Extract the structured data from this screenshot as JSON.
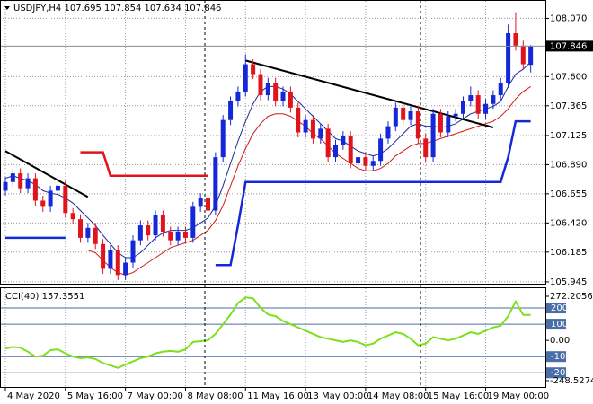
{
  "chart_data": [
    {
      "type": "candlestick",
      "title": "USDJPY,H4  107.695 107.854 107.634 107.846",
      "categories": [
        "4 May 2020",
        null,
        null,
        null,
        null,
        null,
        null,
        null,
        "5 May 16:00",
        null,
        null,
        null,
        null,
        null,
        null,
        null,
        "7 May 00:00",
        null,
        null,
        null,
        null,
        null,
        null,
        null,
        "8 May 08:00",
        null,
        null,
        null,
        null,
        null,
        null,
        null,
        "11 May 16:00",
        null,
        null,
        null,
        null,
        null,
        null,
        null,
        "13 May 00:00",
        null,
        null,
        null,
        null,
        null,
        null,
        null,
        "14 May 08:00",
        null,
        null,
        null,
        null,
        null,
        null,
        null,
        "15 May 16:00",
        null,
        null,
        null,
        null,
        null,
        null,
        null,
        "19 May 00:00",
        null,
        null,
        null,
        null,
        null,
        null
      ],
      "up_color": "#1428d8",
      "down_color": "#e0141c",
      "candles": [
        [
          106.68,
          106.79,
          106.64,
          106.75
        ],
        [
          106.75,
          106.86,
          106.71,
          106.82
        ],
        [
          106.82,
          106.86,
          106.66,
          106.7
        ],
        [
          106.7,
          106.82,
          106.66,
          106.78
        ],
        [
          106.78,
          106.82,
          106.56,
          106.6
        ],
        [
          106.6,
          106.64,
          106.51,
          106.55
        ],
        [
          106.55,
          106.72,
          106.51,
          106.68
        ],
        [
          106.68,
          106.76,
          106.64,
          106.72
        ],
        [
          106.72,
          106.76,
          106.46,
          106.5
        ],
        [
          106.5,
          106.54,
          106.41,
          106.45
        ],
        [
          106.45,
          106.49,
          106.26,
          106.3
        ],
        [
          106.3,
          106.42,
          106.26,
          106.38
        ],
        [
          106.38,
          106.42,
          106.21,
          106.25
        ],
        [
          106.25,
          106.29,
          106.01,
          106.05
        ],
        [
          106.05,
          106.24,
          106.01,
          106.2
        ],
        [
          106.2,
          106.24,
          105.96,
          106.0
        ],
        [
          106.0,
          106.14,
          105.96,
          106.1
        ],
        [
          106.1,
          106.32,
          106.06,
          106.28
        ],
        [
          106.28,
          106.44,
          106.24,
          106.4
        ],
        [
          106.4,
          106.44,
          106.28,
          106.32
        ],
        [
          106.32,
          106.52,
          106.28,
          106.48
        ],
        [
          106.48,
          106.52,
          106.31,
          106.35
        ],
        [
          106.35,
          106.39,
          106.24,
          106.28
        ],
        [
          106.28,
          106.39,
          106.24,
          106.35
        ],
        [
          106.35,
          106.39,
          106.26,
          106.3
        ],
        [
          106.3,
          106.59,
          106.26,
          106.55
        ],
        [
          106.55,
          106.66,
          106.51,
          106.62
        ],
        [
          106.62,
          106.66,
          106.48,
          106.52
        ],
        [
          106.52,
          106.99,
          106.48,
          106.95
        ],
        [
          106.95,
          107.29,
          106.91,
          107.25
        ],
        [
          107.25,
          107.44,
          107.21,
          107.4
        ],
        [
          107.4,
          107.52,
          107.36,
          107.48
        ],
        [
          107.48,
          107.78,
          107.44,
          107.7
        ],
        [
          107.7,
          107.74,
          107.58,
          107.62
        ],
        [
          107.62,
          107.66,
          107.41,
          107.45
        ],
        [
          107.45,
          107.59,
          107.41,
          107.55
        ],
        [
          107.55,
          107.59,
          107.36,
          107.4
        ],
        [
          107.4,
          107.52,
          107.36,
          107.48
        ],
        [
          107.48,
          107.52,
          107.31,
          107.35
        ],
        [
          107.35,
          107.39,
          107.11,
          107.15
        ],
        [
          107.15,
          107.29,
          107.11,
          107.25
        ],
        [
          107.25,
          107.29,
          107.06,
          107.1
        ],
        [
          107.1,
          107.22,
          107.06,
          107.18
        ],
        [
          107.18,
          107.22,
          106.91,
          106.95
        ],
        [
          106.95,
          107.09,
          106.91,
          107.05
        ],
        [
          107.05,
          107.16,
          107.01,
          107.12
        ],
        [
          107.12,
          107.16,
          106.86,
          106.9
        ],
        [
          106.9,
          106.99,
          106.86,
          106.95
        ],
        [
          106.95,
          106.99,
          106.84,
          106.88
        ],
        [
          106.88,
          106.96,
          106.84,
          106.92
        ],
        [
          106.92,
          107.14,
          106.88,
          107.1
        ],
        [
          107.1,
          107.24,
          107.06,
          107.2
        ],
        [
          107.2,
          107.39,
          107.16,
          107.35
        ],
        [
          107.35,
          107.39,
          107.21,
          107.25
        ],
        [
          107.25,
          107.36,
          107.21,
          107.32
        ],
        [
          107.32,
          107.36,
          107.06,
          107.1
        ],
        [
          107.1,
          107.14,
          106.91,
          106.95
        ],
        [
          106.95,
          107.34,
          106.91,
          107.3
        ],
        [
          107.3,
          107.34,
          107.11,
          107.15
        ],
        [
          107.15,
          107.32,
          107.11,
          107.28
        ],
        [
          107.28,
          107.34,
          107.24,
          107.3
        ],
        [
          107.3,
          107.44,
          107.26,
          107.4
        ],
        [
          107.4,
          107.52,
          107.36,
          107.45
        ],
        [
          107.45,
          107.49,
          107.26,
          107.3
        ],
        [
          107.3,
          107.42,
          107.26,
          107.38
        ],
        [
          107.38,
          107.49,
          107.34,
          107.45
        ],
        [
          107.45,
          107.59,
          107.41,
          107.55
        ],
        [
          107.55,
          108.02,
          107.51,
          107.95
        ],
        [
          107.95,
          108.12,
          107.81,
          107.85
        ],
        [
          107.85,
          107.89,
          107.66,
          107.7
        ],
        [
          107.695,
          107.854,
          107.634,
          107.846
        ]
      ],
      "overlays": [
        {
          "color": "#1a2a9a",
          "width": 1,
          "values": [
            106.78,
            106.8,
            106.78,
            106.76,
            106.73,
            106.68,
            106.66,
            106.65,
            106.62,
            106.58,
            106.52,
            106.46,
            106.4,
            106.32,
            106.25,
            106.18,
            106.14,
            106.14,
            106.18,
            106.24,
            106.3,
            106.34,
            106.36,
            106.36,
            106.36,
            106.38,
            106.42,
            106.46,
            106.56,
            106.72,
            106.9,
            107.08,
            107.24,
            107.38,
            107.48,
            107.52,
            107.52,
            107.5,
            107.46,
            107.4,
            107.34,
            107.28,
            107.22,
            107.16,
            107.1,
            107.08,
            107.04,
            107.0,
            106.98,
            106.96,
            106.98,
            107.02,
            107.08,
            107.14,
            107.2,
            107.22,
            107.2,
            107.2,
            107.19,
            107.2,
            107.22,
            107.26,
            107.3,
            107.32,
            107.34,
            107.36,
            107.4,
            107.52,
            107.62,
            107.66,
            107.72
          ]
        },
        {
          "color": "#d01818",
          "width": 1,
          "values": [
            null,
            null,
            null,
            null,
            null,
            null,
            null,
            null,
            null,
            null,
            null,
            106.2,
            106.18,
            106.12,
            106.06,
            106.02,
            106.0,
            106.02,
            106.06,
            106.1,
            106.14,
            106.18,
            106.22,
            106.24,
            106.26,
            106.28,
            106.32,
            106.36,
            106.44,
            106.56,
            106.72,
            106.88,
            107.02,
            107.14,
            107.22,
            107.28,
            107.3,
            107.3,
            107.28,
            107.24,
            107.2,
            107.14,
            107.1,
            107.04,
            106.98,
            106.94,
            106.9,
            106.86,
            106.84,
            106.84,
            106.86,
            106.9,
            106.96,
            107.0,
            107.04,
            107.06,
            107.06,
            107.08,
            107.1,
            107.12,
            107.14,
            107.16,
            107.18,
            107.2,
            107.22,
            107.24,
            107.28,
            107.34,
            107.42,
            107.48,
            107.52
          ]
        },
        {
          "color": "#1428d8",
          "width": 2.5,
          "values": [
            106.3,
            106.3,
            106.3,
            106.3,
            106.3,
            106.3,
            106.3,
            106.3,
            106.3,
            null,
            null,
            null,
            null,
            null,
            null,
            null,
            null,
            null,
            null,
            null,
            null,
            null,
            null,
            null,
            null,
            null,
            null,
            null,
            106.08,
            106.08,
            106.08,
            106.4,
            106.75,
            106.75,
            106.75,
            106.75,
            106.75,
            106.75,
            106.75,
            106.75,
            106.75,
            106.75,
            106.75,
            106.75,
            106.75,
            106.75,
            106.75,
            106.75,
            106.75,
            106.75,
            106.75,
            106.75,
            106.75,
            106.75,
            106.75,
            106.75,
            106.75,
            106.75,
            106.75,
            106.75,
            106.75,
            106.75,
            106.75,
            106.75,
            106.75,
            106.75,
            106.75,
            106.95,
            107.24,
            107.24,
            107.24
          ]
        },
        {
          "color": "#e0141c",
          "width": 2.5,
          "values": [
            null,
            null,
            null,
            null,
            null,
            null,
            null,
            null,
            null,
            null,
            106.99,
            106.99,
            106.99,
            106.99,
            106.8,
            106.8,
            106.8,
            106.8,
            106.8,
            106.8,
            106.8,
            106.8,
            106.8,
            106.8,
            106.8,
            106.8,
            106.8,
            106.8,
            null,
            null,
            null,
            null,
            null,
            null,
            null,
            null,
            null,
            null,
            null,
            null,
            null,
            null,
            null,
            null,
            null,
            null,
            null,
            null,
            null,
            null,
            null,
            null,
            null,
            null,
            null,
            null,
            null,
            null,
            null,
            null,
            null,
            null,
            null,
            null,
            null,
            null,
            null,
            null,
            null,
            null,
            null
          ]
        }
      ],
      "trendlines": [
        {
          "x": [
            0,
            11
          ],
          "y": [
            107.0,
            106.63
          ]
        },
        {
          "x": [
            32,
            65
          ],
          "y": [
            107.73,
            107.19
          ]
        }
      ],
      "last_price": 107.846,
      "ylim": [
        105.93,
        108.16
      ],
      "yticks": [
        {
          "value": 108.07,
          "label": "108.070"
        },
        {
          "value": 107.6,
          "label": "107.600"
        },
        107.365,
        107.125,
        {
          "value": 106.89,
          "label": "106.890"
        },
        106.655,
        {
          "value": 106.42,
          "label": "106.420"
        },
        106.185,
        105.945
      ],
      "grid": true
    },
    {
      "type": "line",
      "title": "CCI(40) 157.3551",
      "color": "#7ee01c",
      "values": [
        -50,
        -40,
        -45,
        -70,
        -100,
        -95,
        -60,
        -55,
        -80,
        -100,
        -110,
        -105,
        -115,
        -140,
        -155,
        -170,
        -150,
        -130,
        -110,
        -100,
        -80,
        -70,
        -65,
        -70,
        -55,
        -10,
        -5,
        0,
        40,
        100,
        160,
        230,
        265,
        260,
        200,
        160,
        150,
        120,
        100,
        80,
        60,
        40,
        20,
        10,
        0,
        -10,
        0,
        -10,
        -30,
        -20,
        10,
        30,
        50,
        40,
        10,
        -30,
        -20,
        20,
        10,
        0,
        10,
        30,
        50,
        40,
        60,
        80,
        90,
        150,
        240,
        157,
        157.3551
      ],
      "ylim": [
        -248.5274,
        272.2056
      ],
      "yticks": [
        272.2056,
        {
          "value": 0,
          "label": "0.00"
        },
        -248.5274
      ],
      "levels": [
        200,
        100,
        -100,
        -200
      ],
      "level_color": "#4a6ea8"
    }
  ]
}
